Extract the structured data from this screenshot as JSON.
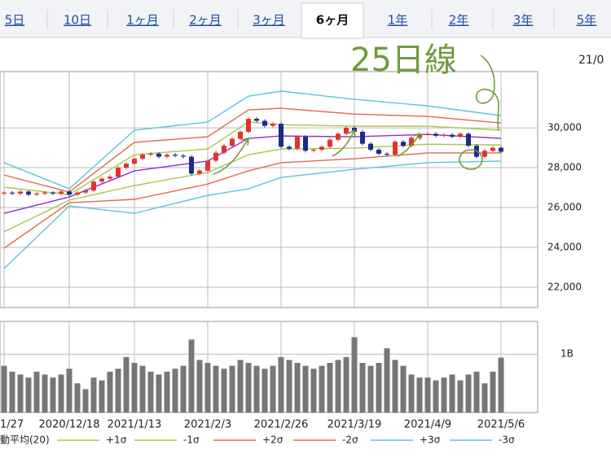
{
  "tabs": [
    "5日",
    "10日",
    "1ヶ月",
    "2ヶ月",
    "3ヶ月",
    "6ヶ月",
    "1年",
    "2年",
    "3年",
    "5年"
  ],
  "active_tab_index": 5,
  "annotation": "25日線",
  "corner_label": "21/0",
  "chart_data": [
    {
      "type": "candlestick",
      "up_color": "#e0342c",
      "down_color": "#1c2a8c",
      "grid": true,
      "x": [
        0,
        1,
        2,
        3,
        4,
        5,
        6,
        7,
        8,
        9,
        10,
        11,
        12,
        13,
        14,
        15,
        16,
        17,
        18,
        19,
        20,
        21,
        22,
        23,
        24,
        25,
        26,
        27,
        28,
        29,
        30,
        31,
        32,
        33,
        34,
        35,
        36,
        37,
        38,
        39,
        40,
        41,
        42,
        43,
        44,
        45,
        46,
        47,
        48,
        49,
        50,
        51,
        52,
        53,
        54,
        55,
        56,
        57,
        58,
        59,
        60,
        61
      ],
      "ohlc": [
        [
          26700,
          26830,
          26620,
          26750
        ],
        [
          26750,
          26830,
          26620,
          26700
        ],
        [
          26700,
          26880,
          26620,
          26800
        ],
        [
          26800,
          26880,
          26570,
          26650
        ],
        [
          26650,
          26780,
          26570,
          26700
        ],
        [
          26700,
          26830,
          26620,
          26750
        ],
        [
          26750,
          26830,
          26620,
          26700
        ],
        [
          26700,
          26880,
          26620,
          26800
        ],
        [
          26800,
          26880,
          26570,
          26650
        ],
        [
          26650,
          26830,
          26570,
          26750
        ],
        [
          26750,
          26930,
          26670,
          26850
        ],
        [
          26850,
          27380,
          26770,
          27300
        ],
        [
          27300,
          27530,
          27220,
          27450
        ],
        [
          27450,
          27630,
          27370,
          27550
        ],
        [
          27550,
          28080,
          27470,
          28000
        ],
        [
          28000,
          28280,
          27920,
          28200
        ],
        [
          28200,
          28530,
          28120,
          28450
        ],
        [
          28450,
          28730,
          28370,
          28650
        ],
        [
          28650,
          28780,
          28570,
          28700
        ],
        [
          28700,
          28780,
          28470,
          28550
        ],
        [
          28550,
          28730,
          28470,
          28650
        ],
        [
          28650,
          28730,
          28520,
          28600
        ],
        [
          28600,
          28680,
          28470,
          28550
        ],
        [
          28550,
          28630,
          27620,
          27700
        ],
        [
          27700,
          27930,
          27620,
          27850
        ],
        [
          27850,
          28430,
          27770,
          28350
        ],
        [
          28350,
          28830,
          28270,
          28750
        ],
        [
          28750,
          29180,
          28670,
          29100
        ],
        [
          29100,
          29530,
          29020,
          29450
        ],
        [
          29450,
          29880,
          29370,
          29800
        ],
        [
          29800,
          30530,
          29720,
          30450
        ],
        [
          30450,
          30530,
          30270,
          30350
        ],
        [
          30350,
          30430,
          30020,
          30100
        ],
        [
          30100,
          30280,
          30020,
          30200
        ],
        [
          30200,
          30280,
          28970,
          29050
        ],
        [
          29050,
          29130,
          28870,
          28950
        ],
        [
          28950,
          29630,
          28870,
          29550
        ],
        [
          29550,
          29630,
          28770,
          28850
        ],
        [
          28850,
          28980,
          28770,
          28900
        ],
        [
          28900,
          29130,
          28820,
          29050
        ],
        [
          29050,
          29480,
          28970,
          29400
        ],
        [
          29400,
          29780,
          29320,
          29700
        ],
        [
          29700,
          30080,
          29620,
          30000
        ],
        [
          30000,
          30080,
          29720,
          29800
        ],
        [
          29800,
          29880,
          29120,
          29200
        ],
        [
          29200,
          29280,
          28820,
          28900
        ],
        [
          28900,
          28980,
          28620,
          28700
        ],
        [
          28700,
          28780,
          28570,
          28650
        ],
        [
          28650,
          29380,
          28570,
          29300
        ],
        [
          29300,
          29380,
          29020,
          29100
        ],
        [
          29100,
          29580,
          29020,
          29500
        ],
        [
          29500,
          29730,
          29420,
          29650
        ],
        [
          29650,
          29780,
          29570,
          29700
        ],
        [
          29700,
          29780,
          29520,
          29600
        ],
        [
          29600,
          29730,
          29520,
          29650
        ],
        [
          29650,
          29730,
          29470,
          29550
        ],
        [
          29550,
          29780,
          29470,
          29700
        ],
        [
          29700,
          29780,
          29020,
          29100
        ],
        [
          29100,
          29180,
          28470,
          28550
        ],
        [
          28550,
          28930,
          28470,
          28850
        ],
        [
          28850,
          29080,
          28770,
          29000
        ],
        [
          29000,
          29080,
          28720,
          28800
        ]
      ],
      "series": [
        {
          "name": "動平均(20)",
          "color": "#8b2fc9",
          "x": [
            0,
            8,
            16,
            25,
            30,
            34,
            43,
            52,
            61
          ],
          "values": [
            25710,
            26530,
            27840,
            28330,
            29470,
            29590,
            29550,
            29670,
            29470
          ]
        },
        {
          "name": "+1σ",
          "color": "#a9c64a",
          "x": [
            0,
            8,
            16,
            25,
            30,
            34,
            43,
            52,
            61
          ],
          "values": [
            27020,
            26650,
            28650,
            28940,
            30290,
            30160,
            30080,
            30080,
            29880
          ]
        },
        {
          "name": "-1σ",
          "color": "#a9c64a",
          "x": [
            0,
            8,
            16,
            25,
            30,
            34,
            43,
            52,
            61
          ],
          "values": [
            24780,
            26370,
            27100,
            27760,
            28650,
            28940,
            28980,
            29180,
            29140
          ]
        },
        {
          "name": "+2σ",
          "color": "#e06a4a",
          "x": [
            0,
            8,
            16,
            25,
            30,
            34,
            43,
            52,
            61
          ],
          "values": [
            27630,
            26780,
            29270,
            29550,
            30900,
            30980,
            30690,
            30570,
            30240
          ]
        },
        {
          "name": "-2σ",
          "color": "#e06a4a",
          "x": [
            0,
            8,
            16,
            25,
            30,
            34,
            43,
            52,
            61
          ],
          "values": [
            23960,
            26240,
            26410,
            27180,
            27840,
            28250,
            28450,
            28740,
            28740
          ]
        },
        {
          "name": "+3σ",
          "color": "#5cc4dc",
          "x": [
            0,
            8,
            16,
            25,
            30,
            34,
            43,
            52,
            61
          ],
          "values": [
            28250,
            26940,
            29880,
            30290,
            31590,
            31840,
            31430,
            31100,
            30610
          ]
        },
        {
          "name": "-3σ",
          "color": "#5cc4dc",
          "x": [
            0,
            8,
            16,
            25,
            30,
            34,
            43,
            52,
            61
          ],
          "values": [
            22940,
            26080,
            25710,
            26610,
            26940,
            27510,
            27920,
            28250,
            28330
          ]
        }
      ],
      "xlim": [
        -0.5,
        65.5
      ],
      "xticks": [
        {
          "value": 0,
          "label": "1/27"
        },
        {
          "value": 8,
          "label": "2020/12/18"
        },
        {
          "value": 16,
          "label": "2021/1/13"
        },
        {
          "value": 25,
          "label": "2021/2/3"
        },
        {
          "value": 34,
          "label": "2021/2/26"
        },
        {
          "value": 43,
          "label": "2021/3/19"
        },
        {
          "value": 52,
          "label": "2021/4/9"
        },
        {
          "value": 61,
          "label": "2021/5/6"
        }
      ],
      "ylim": [
        20980,
        32820
      ],
      "yticks": [
        {
          "value": 22000,
          "label": "22,000"
        },
        {
          "value": 24000,
          "label": "24,000"
        },
        {
          "value": 26000,
          "label": "26,000"
        },
        {
          "value": 28000,
          "label": "28,000"
        },
        {
          "value": 30000,
          "label": "30,000"
        }
      ]
    },
    {
      "type": "bar",
      "color": "#777777",
      "x": [
        0,
        1,
        2,
        3,
        4,
        5,
        6,
        7,
        8,
        9,
        10,
        11,
        12,
        13,
        14,
        15,
        16,
        17,
        18,
        19,
        20,
        21,
        22,
        23,
        24,
        25,
        26,
        27,
        28,
        29,
        30,
        31,
        32,
        33,
        34,
        35,
        36,
        37,
        38,
        39,
        40,
        41,
        42,
        43,
        44,
        45,
        46,
        47,
        48,
        49,
        50,
        51,
        52,
        53,
        54,
        55,
        56,
        57,
        58,
        59,
        60,
        61
      ],
      "values": [
        0.8,
        0.7,
        0.65,
        0.6,
        0.7,
        0.65,
        0.6,
        0.65,
        0.75,
        0.5,
        0.4,
        0.6,
        0.55,
        0.7,
        0.75,
        0.95,
        0.85,
        0.8,
        0.7,
        0.65,
        0.7,
        0.75,
        0.8,
        1.25,
        0.9,
        0.85,
        0.8,
        0.75,
        0.8,
        0.9,
        0.85,
        0.8,
        0.75,
        0.8,
        0.95,
        0.9,
        0.85,
        0.8,
        0.75,
        0.8,
        0.85,
        0.9,
        0.95,
        1.29,
        0.85,
        0.8,
        0.85,
        1.1,
        0.9,
        0.8,
        0.65,
        0.6,
        0.6,
        0.55,
        0.6,
        0.65,
        0.55,
        0.65,
        0.7,
        0.5,
        0.7,
        0.94
      ],
      "xlim": [
        -0.5,
        65.5
      ],
      "ylim": [
        0,
        1.56
      ],
      "yticks": [
        {
          "value": 1,
          "label": "1B"
        }
      ]
    }
  ]
}
